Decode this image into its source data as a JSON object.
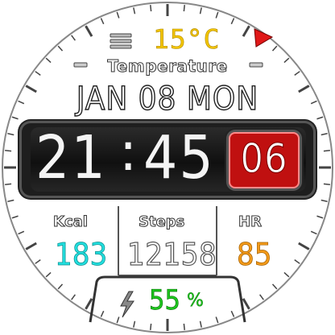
{
  "weather": {
    "icon": "fog-icon",
    "temperature": "15°C",
    "label": "Temperature",
    "indicator_icon": "red-triangle-icon"
  },
  "date": {
    "text": "JAN 08 MON"
  },
  "time": {
    "hours": "21",
    "separator": ":",
    "minutes": "45",
    "seconds": "06"
  },
  "stats": {
    "kcal": {
      "label": "Kcal",
      "value": "183"
    },
    "steps": {
      "label": "Steps",
      "value": "12158"
    },
    "hr": {
      "label": "HR",
      "value": "85"
    }
  },
  "battery": {
    "icon": "lightning-bolt-icon",
    "value": "55",
    "unit": "%"
  },
  "colors": {
    "temperature": "#f2c400",
    "kcal": "#22dede",
    "heart_rate": "#f29a1a",
    "battery": "#1ec81e",
    "seconds_bg": "#c01010",
    "indicator": "#e01818"
  }
}
